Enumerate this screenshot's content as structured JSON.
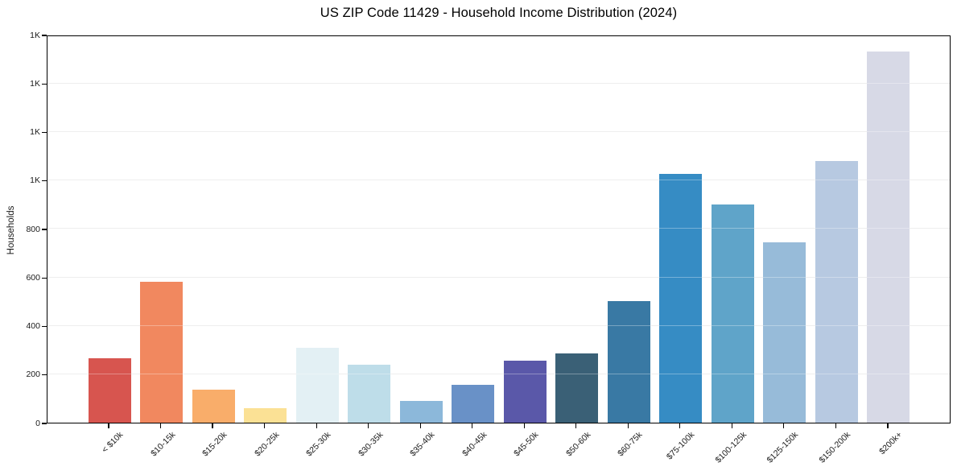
{
  "figure": {
    "title": "US ZIP Code 11429 - Household Income Distribution (2024)",
    "y_axis_label": "Households"
  },
  "chart_data": {
    "type": "bar",
    "title": "US ZIP Code 11429 - Household Income Distribution (2024)",
    "xlabel": "",
    "ylabel": "Households",
    "categories": [
      "< $10k",
      "$10-15k",
      "$15-20k",
      "$20-25k",
      "$25-30k",
      "$30-35k",
      "$35-40k",
      "$40-45k",
      "$45-50k",
      "$50-60k",
      "$60-75k",
      "$75-100k",
      "$100-125k",
      "$125-150k",
      "$150-200k",
      "$200k+"
    ],
    "values": [
      265,
      580,
      135,
      60,
      310,
      240,
      90,
      155,
      255,
      285,
      500,
      1025,
      900,
      745,
      1080,
      1530
    ],
    "bar_colors": [
      "#d7554f",
      "#f1885f",
      "#f9ad6a",
      "#fbe195",
      "#e3f0f4",
      "#bedde9",
      "#8cb8da",
      "#6991c7",
      "#5a58a9",
      "#3a6076",
      "#3979a4",
      "#368cc4",
      "#5fa4c9",
      "#97bbd9",
      "#b7c9e1",
      "#d7d9e6"
    ],
    "ylim": [
      0,
      1600
    ],
    "yticks": [
      {
        "value": 0,
        "label": "0"
      },
      {
        "value": 200,
        "label": "200"
      },
      {
        "value": 400,
        "label": "400"
      },
      {
        "value": 600,
        "label": "600"
      },
      {
        "value": 800,
        "label": "800"
      },
      {
        "value": 1000,
        "label": "1K"
      },
      {
        "value": 1200,
        "label": "1K"
      },
      {
        "value": 1400,
        "label": "1K"
      },
      {
        "value": 1600,
        "label": "1K"
      }
    ],
    "grid": true,
    "legend_position": "none",
    "x_tick_rotation_deg": 45,
    "colors": {
      "background": "#ffffff",
      "spine": "#000000",
      "grid": "#e6e6e6",
      "text": "#1a1a1a"
    }
  }
}
